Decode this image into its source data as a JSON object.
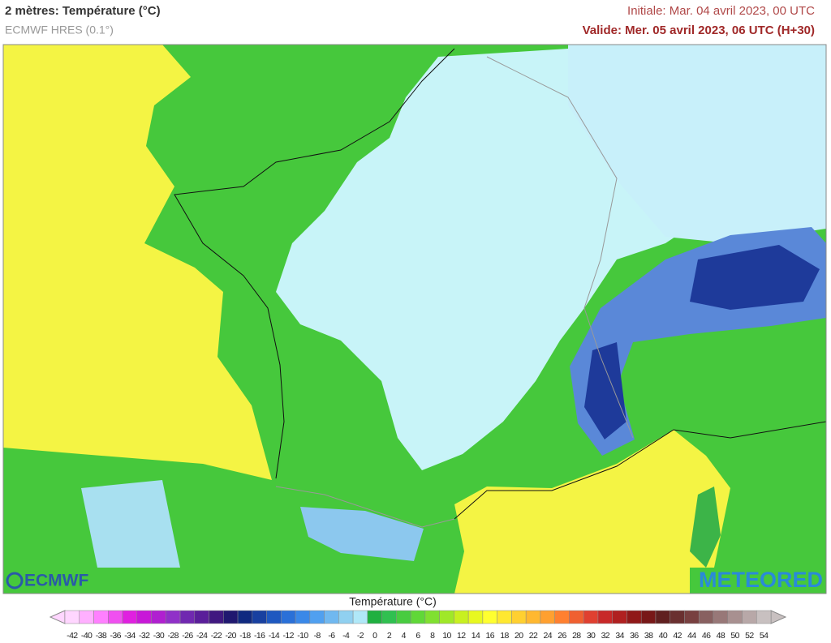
{
  "header": {
    "title": "2 mètres: Température (°C)",
    "subtitle": "ECMWF HRES (0.1°)",
    "initial": "Initiale: Mar. 04 avril 2023, 00 UTC",
    "valid": "Valide: Mer. 05 avril 2023, 06 UTC (H+30)"
  },
  "logos": {
    "left": "ECMWF",
    "right": "METEORED"
  },
  "legend": {
    "label": "Température (°C)",
    "ticks": [
      -42,
      -40,
      -38,
      -36,
      -34,
      -32,
      -30,
      -28,
      -26,
      -24,
      -22,
      -20,
      -18,
      -16,
      -14,
      -12,
      -10,
      -8,
      -6,
      -4,
      -2,
      0,
      2,
      4,
      6,
      8,
      10,
      12,
      14,
      16,
      18,
      20,
      22,
      24,
      26,
      28,
      30,
      32,
      34,
      36,
      38,
      40,
      42,
      44,
      46,
      48,
      50,
      52,
      54
    ],
    "colors": [
      "#ffd6ff",
      "#ffb0ff",
      "#ff80ff",
      "#f050f0",
      "#e020e0",
      "#c818d8",
      "#b020d0",
      "#9030c8",
      "#7028b0",
      "#5a1e9a",
      "#401880",
      "#201870",
      "#102a80",
      "#1840a0",
      "#1e58c0",
      "#2a70d8",
      "#3a88e8",
      "#50a0f0",
      "#70b8f0",
      "#90d0f0",
      "#b0e8f8",
      "#20b040",
      "#30c050",
      "#48cc40",
      "#60d838",
      "#80e030",
      "#a0e828",
      "#c8f020",
      "#e8f820",
      "#ffff30",
      "#ffe830",
      "#ffd030",
      "#ffb830",
      "#ffa030",
      "#ff8030",
      "#f06030",
      "#e04030",
      "#c82828",
      "#b02020",
      "#901818",
      "#781818",
      "#602020",
      "#6a3030",
      "#784040",
      "#886060",
      "#987878",
      "#a89090",
      "#b8a8a8",
      "#c8c0c0"
    ]
  }
}
